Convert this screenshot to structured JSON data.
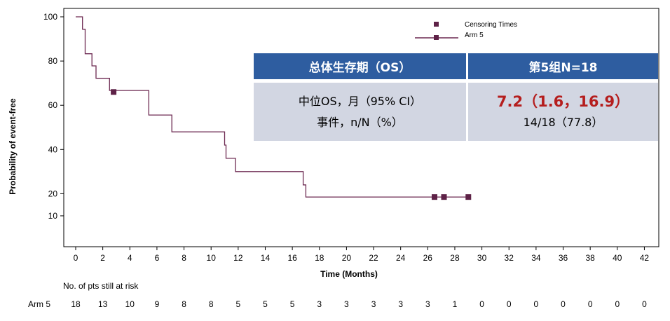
{
  "chart_data": {
    "type": "line",
    "xlabel": "Time (Months)",
    "ylabel": "Probability of event-free",
    "xlim": [
      -1,
      43
    ],
    "ylim": [
      5,
      103
    ],
    "xticks": [
      0,
      2,
      4,
      6,
      8,
      10,
      12,
      14,
      16,
      18,
      20,
      22,
      24,
      26,
      28,
      30,
      32,
      34,
      36,
      38,
      40,
      42
    ],
    "yticks": [
      10,
      20,
      40,
      60,
      80,
      100
    ],
    "series": [
      {
        "name": "Arm 5",
        "color": "#6d2a52",
        "step_points": [
          [
            0,
            100
          ],
          [
            0.5,
            100
          ],
          [
            0.5,
            94.4
          ],
          [
            0.7,
            94.4
          ],
          [
            0.7,
            83.3
          ],
          [
            1.2,
            83.3
          ],
          [
            1.2,
            77.8
          ],
          [
            1.5,
            77.8
          ],
          [
            1.5,
            72.2
          ],
          [
            2.5,
            72.2
          ],
          [
            2.5,
            66.7
          ],
          [
            5.4,
            66.7
          ],
          [
            5.4,
            55.6
          ],
          [
            7.1,
            55.6
          ],
          [
            7.1,
            48
          ],
          [
            11.0,
            48
          ],
          [
            11.0,
            42
          ],
          [
            11.1,
            42
          ],
          [
            11.1,
            36
          ],
          [
            11.8,
            36
          ],
          [
            11.8,
            30
          ],
          [
            16.8,
            30
          ],
          [
            16.8,
            24
          ],
          [
            17.0,
            24
          ],
          [
            17.0,
            18.5
          ],
          [
            29.0,
            18.5
          ]
        ],
        "censor_points": [
          [
            2.8,
            66
          ],
          [
            26.5,
            18.5
          ],
          [
            27.2,
            18.5
          ],
          [
            29.0,
            18.5
          ]
        ]
      }
    ],
    "legend": {
      "placement": "top-right",
      "entries": [
        "Censoring Times",
        "Arm 5"
      ]
    },
    "risk_table": {
      "title": "No. of pts still at risk",
      "row_label": "Arm 5",
      "values": [
        "18",
        "13",
        "10",
        "9",
        "8",
        "8",
        "5",
        "5",
        "5",
        "3",
        "3",
        "3",
        "3",
        "3",
        "1",
        "0",
        "0",
        "0",
        "0",
        "0",
        "0",
        "0"
      ]
    }
  },
  "summary": {
    "header_left": "总体生存期（OS）",
    "header_right": "第5组N=18",
    "row1_label": "中位OS，月（95% CI）",
    "row2_label": "事件，n/N（%）",
    "row1_value": "7.2（1.6，16.9）",
    "row2_value": "14/18（77.8）"
  }
}
